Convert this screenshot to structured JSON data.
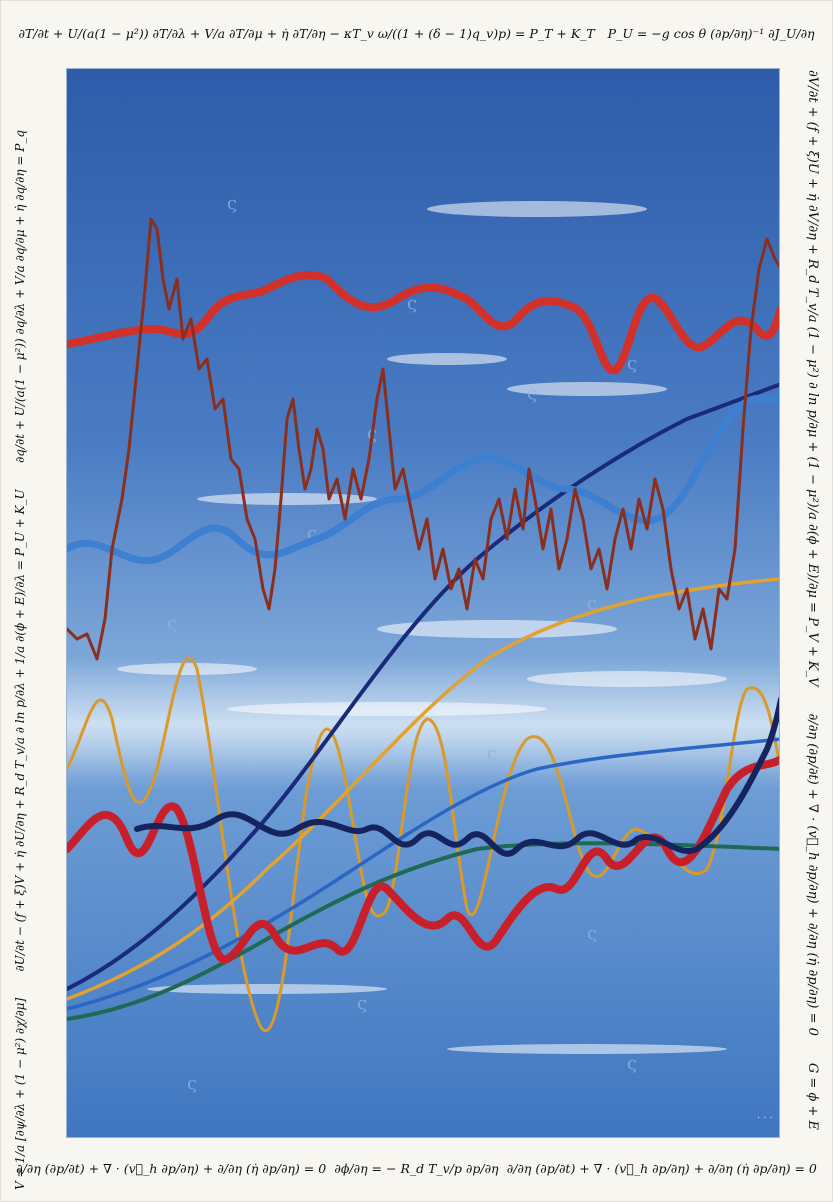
{
  "equations": {
    "top": [
      "∂T/∂t + U/(a(1 − μ²)) ∂T/∂λ + V/a ∂T/∂μ + η̇ ∂T/∂η − κT_v ω/((1 + (δ − 1)q_v)p) = P_T + K_T",
      "P_U = −g cos θ (∂p/∂η)⁻¹ ∂J_U/∂η"
    ],
    "bottom": [
      "∂/∂η (∂p/∂t) + ∇ · (v⃗_h ∂p/∂η) + ∂/∂η (η̇ ∂p/∂η) = 0",
      "∂ϕ/∂η = − R_d T_v/p ∂p/∂η",
      "∂/∂η (∂p/∂t) + ∇ · (v⃗_h ∂p/∂η) + ∂/∂η (η̇ ∂p/∂η) = 0"
    ],
    "left": [
      "V = 1/a [∂ψ/∂λ + (1 − μ²) ∂χ/∂μ]",
      "∂U/∂t − (f + ξ)V + η̇ ∂U/∂η + R_d T_v/a ∂ ln p/∂λ + 1/a ∂(ϕ + E)/∂λ = P_U + K_U",
      "∂q/∂t + U/(a(1 − μ²)) ∂q/∂λ + V/a ∂q/∂μ + η̇ ∂q/∂η = P_q"
    ],
    "right": [
      "∂V/∂t + (f + ξ)U + η̇ ∂V/∂η + R_d T_v/a (1 − μ²) ∂ ln p/∂μ + (1 − μ²)/a ∂(ϕ + E)/∂μ = P_V + K_V",
      "∂/∂η (∂p/∂t) + ∇ · (v⃗_h ∂p/∂η) + ∂/∂η (η̇ ∂p/∂η) = 0",
      "G = ϕ + E"
    ]
  },
  "colors": {
    "sky_top": "#2f5fae",
    "sky_bottom": "#5f93cf",
    "red": "#d2312a",
    "brown": "#8a2e1d",
    "blue": "#1e5fc0",
    "navy": "#0d1f5c",
    "orange": "#d99a2a",
    "green": "#1f6a55",
    "light_blue": "#3d7fd0"
  }
}
